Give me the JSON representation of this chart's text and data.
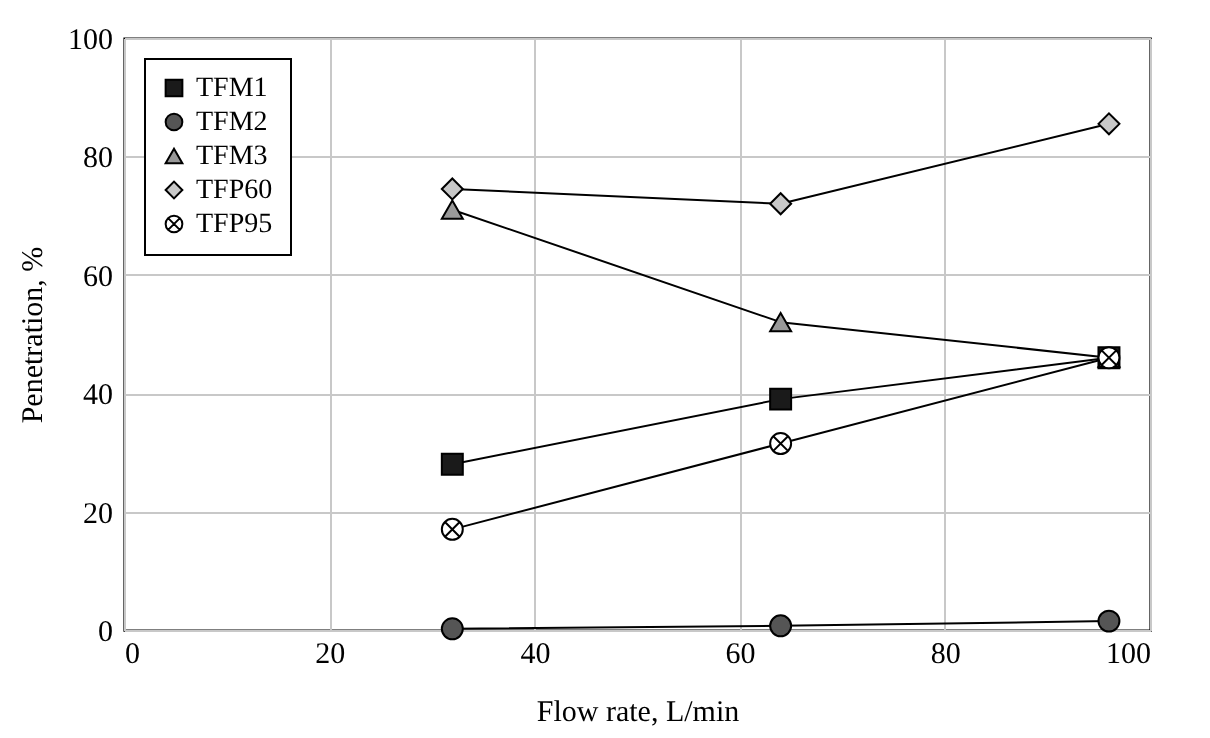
{
  "chart_data": {
    "type": "line",
    "xlabel": "Flow rate, L/min",
    "ylabel": "Penetration, %",
    "x": [
      32,
      64,
      96
    ],
    "series": [
      {
        "name": "TFM1",
        "color": "#1a1a1a",
        "marker": "square",
        "values": [
          28,
          39,
          46
        ]
      },
      {
        "name": "TFM2",
        "color": "#555555",
        "marker": "circle",
        "values": [
          0.2,
          0.7,
          1.5
        ]
      },
      {
        "name": "TFM3",
        "color": "#999999",
        "marker": "triangle",
        "values": [
          71,
          52,
          46
        ]
      },
      {
        "name": "TFP60",
        "color": "#c8c8c8",
        "marker": "diamond",
        "values": [
          74.5,
          72,
          85.5
        ]
      },
      {
        "name": "TFP95",
        "color": "#ffffff",
        "marker": "cross",
        "values": [
          17,
          31.5,
          46
        ]
      }
    ],
    "xlim": [
      0,
      100
    ],
    "xticks": [
      0,
      20,
      40,
      60,
      80,
      100
    ],
    "ylim": [
      0,
      100
    ],
    "yticks": [
      0,
      20,
      40,
      60,
      80,
      100
    ],
    "grid": true,
    "legend": "top left",
    "line_style": "solid"
  }
}
